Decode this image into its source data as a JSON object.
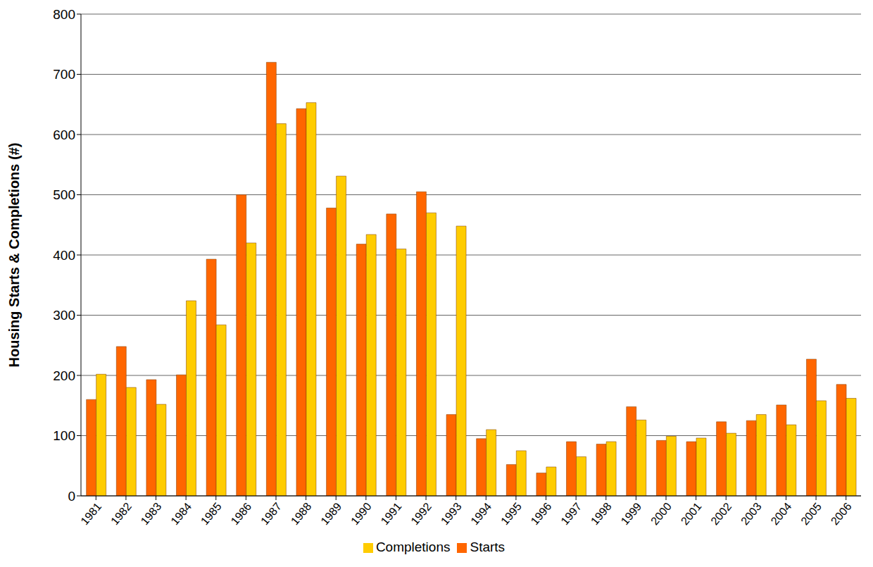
{
  "chart_data": {
    "type": "bar",
    "y_label": "Housing Starts & Completions (#)",
    "categories": [
      "1981",
      "1982",
      "1983",
      "1984",
      "1985",
      "1986",
      "1987",
      "1988",
      "1989",
      "1990",
      "1991",
      "1992",
      "1993",
      "1994",
      "1995",
      "1996",
      "1997",
      "1998",
      "1999",
      "2000",
      "2001",
      "2002",
      "2003",
      "2004",
      "2005",
      "2006"
    ],
    "series": [
      {
        "name": "Starts",
        "color": "#ff6600",
        "values": [
          160,
          248,
          193,
          201,
          393,
          500,
          720,
          643,
          478,
          418,
          468,
          505,
          135,
          95,
          52,
          38,
          90,
          86,
          148,
          92,
          90,
          123,
          125,
          151,
          227,
          185
        ]
      },
      {
        "name": "Completions",
        "color": "#ffcc00",
        "values": [
          202,
          180,
          152,
          324,
          284,
          420,
          618,
          653,
          531,
          434,
          410,
          470,
          448,
          110,
          75,
          48,
          65,
          90,
          126,
          99,
          96,
          104,
          135,
          118,
          158,
          162
        ]
      }
    ],
    "ylim": [
      0,
      800
    ],
    "yticks": [
      0,
      100,
      200,
      300,
      400,
      500,
      600,
      700,
      800
    ],
    "grid": true,
    "legend": "bottom"
  }
}
